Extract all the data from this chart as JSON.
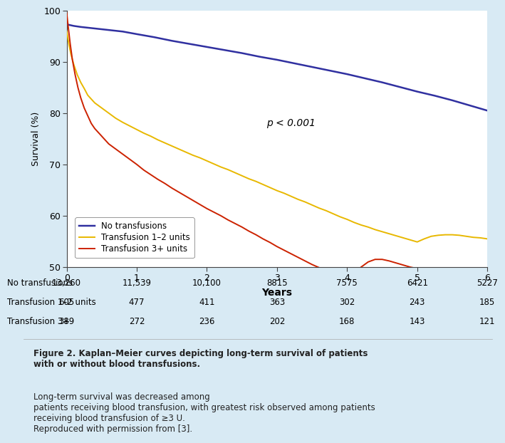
{
  "background_color": "#d8eaf4",
  "plot_bg_color": "#ffffff",
  "caption_bg_color": "#c8dce8",
  "risk_bg_color": "#d8eaf4",
  "blue_line": {
    "label": "No transfusions",
    "color": "#3030a0",
    "x": [
      0,
      0.1,
      0.2,
      0.4,
      0.6,
      0.8,
      1.0,
      1.25,
      1.5,
      1.75,
      2.0,
      2.25,
      2.5,
      2.75,
      3.0,
      3.25,
      3.5,
      3.75,
      4.0,
      4.25,
      4.5,
      4.75,
      5.0,
      5.25,
      5.5,
      5.75,
      6.0
    ],
    "y": [
      97.3,
      97.0,
      96.8,
      96.5,
      96.2,
      95.9,
      95.4,
      94.8,
      94.1,
      93.5,
      92.9,
      92.3,
      91.7,
      91.0,
      90.4,
      89.7,
      89.0,
      88.3,
      87.6,
      86.8,
      86.0,
      85.1,
      84.2,
      83.4,
      82.5,
      81.5,
      80.5
    ]
  },
  "yellow_line": {
    "label": "Transfusion 1–2 units",
    "color": "#e8b800",
    "x": [
      0,
      0.03,
      0.06,
      0.1,
      0.15,
      0.2,
      0.25,
      0.3,
      0.4,
      0.5,
      0.6,
      0.7,
      0.8,
      0.9,
      1.0,
      1.1,
      1.2,
      1.3,
      1.4,
      1.5,
      1.6,
      1.7,
      1.8,
      1.9,
      2.0,
      2.1,
      2.2,
      2.3,
      2.4,
      2.5,
      2.6,
      2.7,
      2.8,
      2.9,
      3.0,
      3.1,
      3.2,
      3.3,
      3.4,
      3.5,
      3.6,
      3.7,
      3.8,
      3.9,
      4.0,
      4.1,
      4.2,
      4.3,
      4.4,
      4.5,
      4.6,
      4.7,
      4.8,
      4.9,
      5.0,
      5.1,
      5.2,
      5.3,
      5.4,
      5.5,
      5.6,
      5.7,
      5.8,
      5.9,
      6.0
    ],
    "y": [
      96.0,
      93.5,
      91.5,
      89.5,
      87.5,
      86.0,
      84.8,
      83.5,
      82.0,
      81.0,
      80.0,
      79.0,
      78.2,
      77.5,
      76.8,
      76.1,
      75.5,
      74.8,
      74.2,
      73.6,
      73.0,
      72.4,
      71.8,
      71.3,
      70.7,
      70.1,
      69.5,
      69.0,
      68.4,
      67.8,
      67.2,
      66.7,
      66.1,
      65.5,
      64.9,
      64.4,
      63.8,
      63.2,
      62.7,
      62.1,
      61.5,
      61.0,
      60.4,
      59.8,
      59.3,
      58.7,
      58.2,
      57.8,
      57.3,
      56.9,
      56.5,
      56.1,
      55.7,
      55.3,
      54.9,
      55.5,
      56.0,
      56.2,
      56.3,
      56.3,
      56.2,
      56.0,
      55.8,
      55.7,
      55.5
    ]
  },
  "red_line": {
    "label": "Transfusion 3+ units",
    "color": "#cc2200",
    "x": [
      0,
      0.02,
      0.05,
      0.08,
      0.12,
      0.16,
      0.2,
      0.25,
      0.3,
      0.35,
      0.4,
      0.5,
      0.6,
      0.7,
      0.8,
      0.9,
      1.0,
      1.1,
      1.2,
      1.3,
      1.4,
      1.5,
      1.6,
      1.7,
      1.8,
      1.9,
      2.0,
      2.1,
      2.2,
      2.3,
      2.4,
      2.5,
      2.6,
      2.7,
      2.8,
      2.9,
      3.0,
      3.1,
      3.2,
      3.3,
      3.4,
      3.5,
      3.6,
      3.7,
      3.8,
      3.9,
      4.0,
      4.1,
      4.2,
      4.3,
      4.4,
      4.5,
      4.6,
      4.7,
      4.8,
      4.9,
      5.0
    ],
    "y": [
      99.5,
      97.0,
      93.5,
      90.5,
      87.5,
      85.0,
      83.0,
      81.0,
      79.5,
      78.0,
      77.0,
      75.5,
      74.0,
      73.0,
      72.0,
      71.0,
      70.0,
      68.9,
      68.0,
      67.1,
      66.3,
      65.4,
      64.6,
      63.8,
      63.0,
      62.2,
      61.4,
      60.7,
      60.0,
      59.2,
      58.5,
      57.8,
      57.0,
      56.3,
      55.5,
      54.8,
      54.0,
      53.3,
      52.6,
      51.9,
      51.2,
      50.5,
      49.9,
      49.3,
      48.7,
      48.1,
      47.5,
      48.8,
      50.0,
      51.0,
      51.5,
      51.5,
      51.2,
      50.8,
      50.4,
      50.0,
      49.7
    ]
  },
  "xlim": [
    0,
    6
  ],
  "ylim": [
    50,
    100
  ],
  "xticks": [
    0,
    1,
    2,
    3,
    4,
    5,
    6
  ],
  "yticks": [
    50,
    60,
    70,
    80,
    90,
    100
  ],
  "xlabel": "Years",
  "ylabel": "Survival (%)",
  "pvalue_text": "p < 0.001",
  "pvalue_x": 2.85,
  "pvalue_y": 77.5,
  "risk_table": {
    "rows": [
      "No transfusions",
      "Transfusion 1–2 units",
      "Transfusion 3+"
    ],
    "values": [
      [
        "13,260",
        "11,539",
        "10,100",
        "8815",
        "7575",
        "6421",
        "5227"
      ],
      [
        "605",
        "477",
        "411",
        "363",
        "302",
        "243",
        "185"
      ],
      [
        "389",
        "272",
        "236",
        "202",
        "168",
        "143",
        "121"
      ]
    ],
    "timepoints": [
      0,
      1,
      2,
      3,
      4,
      5,
      6
    ]
  },
  "caption_bold": "Figure 2. Kaplan–Meier curves depicting long-term survival of patients\nwith or without blood transfusions.",
  "caption_normal": " Long-term survival was decreased among\npatients receiving blood transfusion, with greatest risk observed among patients\nreceiving blood transfusion of ≥3 U.\nReproduced with permission from [3].",
  "line_width": 1.4,
  "font_size": 9
}
